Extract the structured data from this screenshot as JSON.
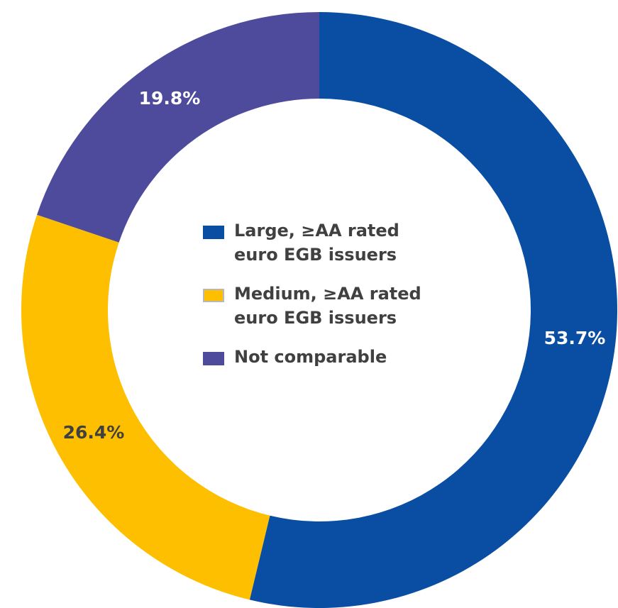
{
  "chart_data": {
    "type": "pie",
    "variant": "donut",
    "title": "",
    "slices": [
      {
        "label": "Large, ≥AA rated euro EGB issuers",
        "value": 53.7,
        "display": "53.7%",
        "color": "#0a4ea3",
        "label_color": "#ffffff"
      },
      {
        "label": "Medium, ≥AA rated euro EGB issuers",
        "value": 26.4,
        "display": "26.4%",
        "color": "#fdbf00",
        "label_color": "#404040"
      },
      {
        "label": "Not comparable",
        "value": 19.8,
        "display": "19.8%",
        "color": "#4e4b9c",
        "label_color": "#ffffff"
      }
    ],
    "legend_position": "center"
  },
  "legend": {
    "items": [
      {
        "label": "Large, ≥AA rated euro EGB issuers",
        "color": "#0a4ea3"
      },
      {
        "label": "Medium, ≥AA rated euro EGB issuers",
        "color": "#fdbf00"
      },
      {
        "label": "Not comparable",
        "color": "#4e4b9c"
      }
    ]
  }
}
